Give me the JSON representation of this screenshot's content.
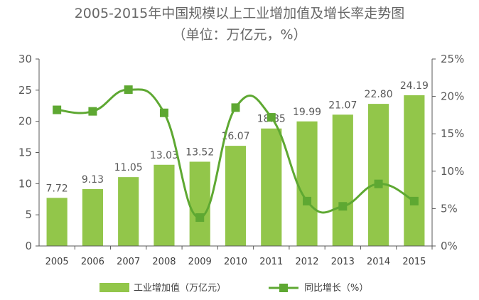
{
  "chart_data": {
    "type": "bar",
    "title": "2005-2015年中国规模以上工业增加值及增长率走势图",
    "subtitle": "（单位：万亿元，%）",
    "categories": [
      "2005",
      "2006",
      "2007",
      "2008",
      "2009",
      "2010",
      "2011",
      "2012",
      "2013",
      "2014",
      "2015"
    ],
    "series": [
      {
        "name": "工业增加值（万亿元）",
        "type": "bar",
        "axis": "left",
        "values": [
          7.72,
          9.13,
          11.05,
          13.03,
          13.52,
          16.07,
          18.85,
          19.99,
          21.07,
          22.8,
          24.19
        ],
        "labels": [
          "7.72",
          "9.13",
          "11.05",
          "13.03",
          "13.52",
          "16.07",
          "18.85",
          "19.99",
          "21.07",
          "22.80",
          "24.19"
        ],
        "color": "#92c64a"
      },
      {
        "name": "同比增长（%）",
        "type": "line",
        "axis": "right",
        "values": [
          18.2,
          18.0,
          20.9,
          17.8,
          3.8,
          18.5,
          17.2,
          6.0,
          5.3,
          8.3,
          6.0
        ],
        "color": "#5ea832"
      }
    ],
    "y_left": {
      "min": 0,
      "max": 30,
      "step": 5,
      "ticks": [
        "0",
        "5",
        "10",
        "15",
        "20",
        "25",
        "30"
      ]
    },
    "y_right": {
      "min": 0,
      "max": 25,
      "step": 5,
      "ticks": [
        "0%",
        "5%",
        "10%",
        "15%",
        "20%",
        "25%"
      ]
    },
    "grid": false,
    "legend_position": "bottom"
  }
}
